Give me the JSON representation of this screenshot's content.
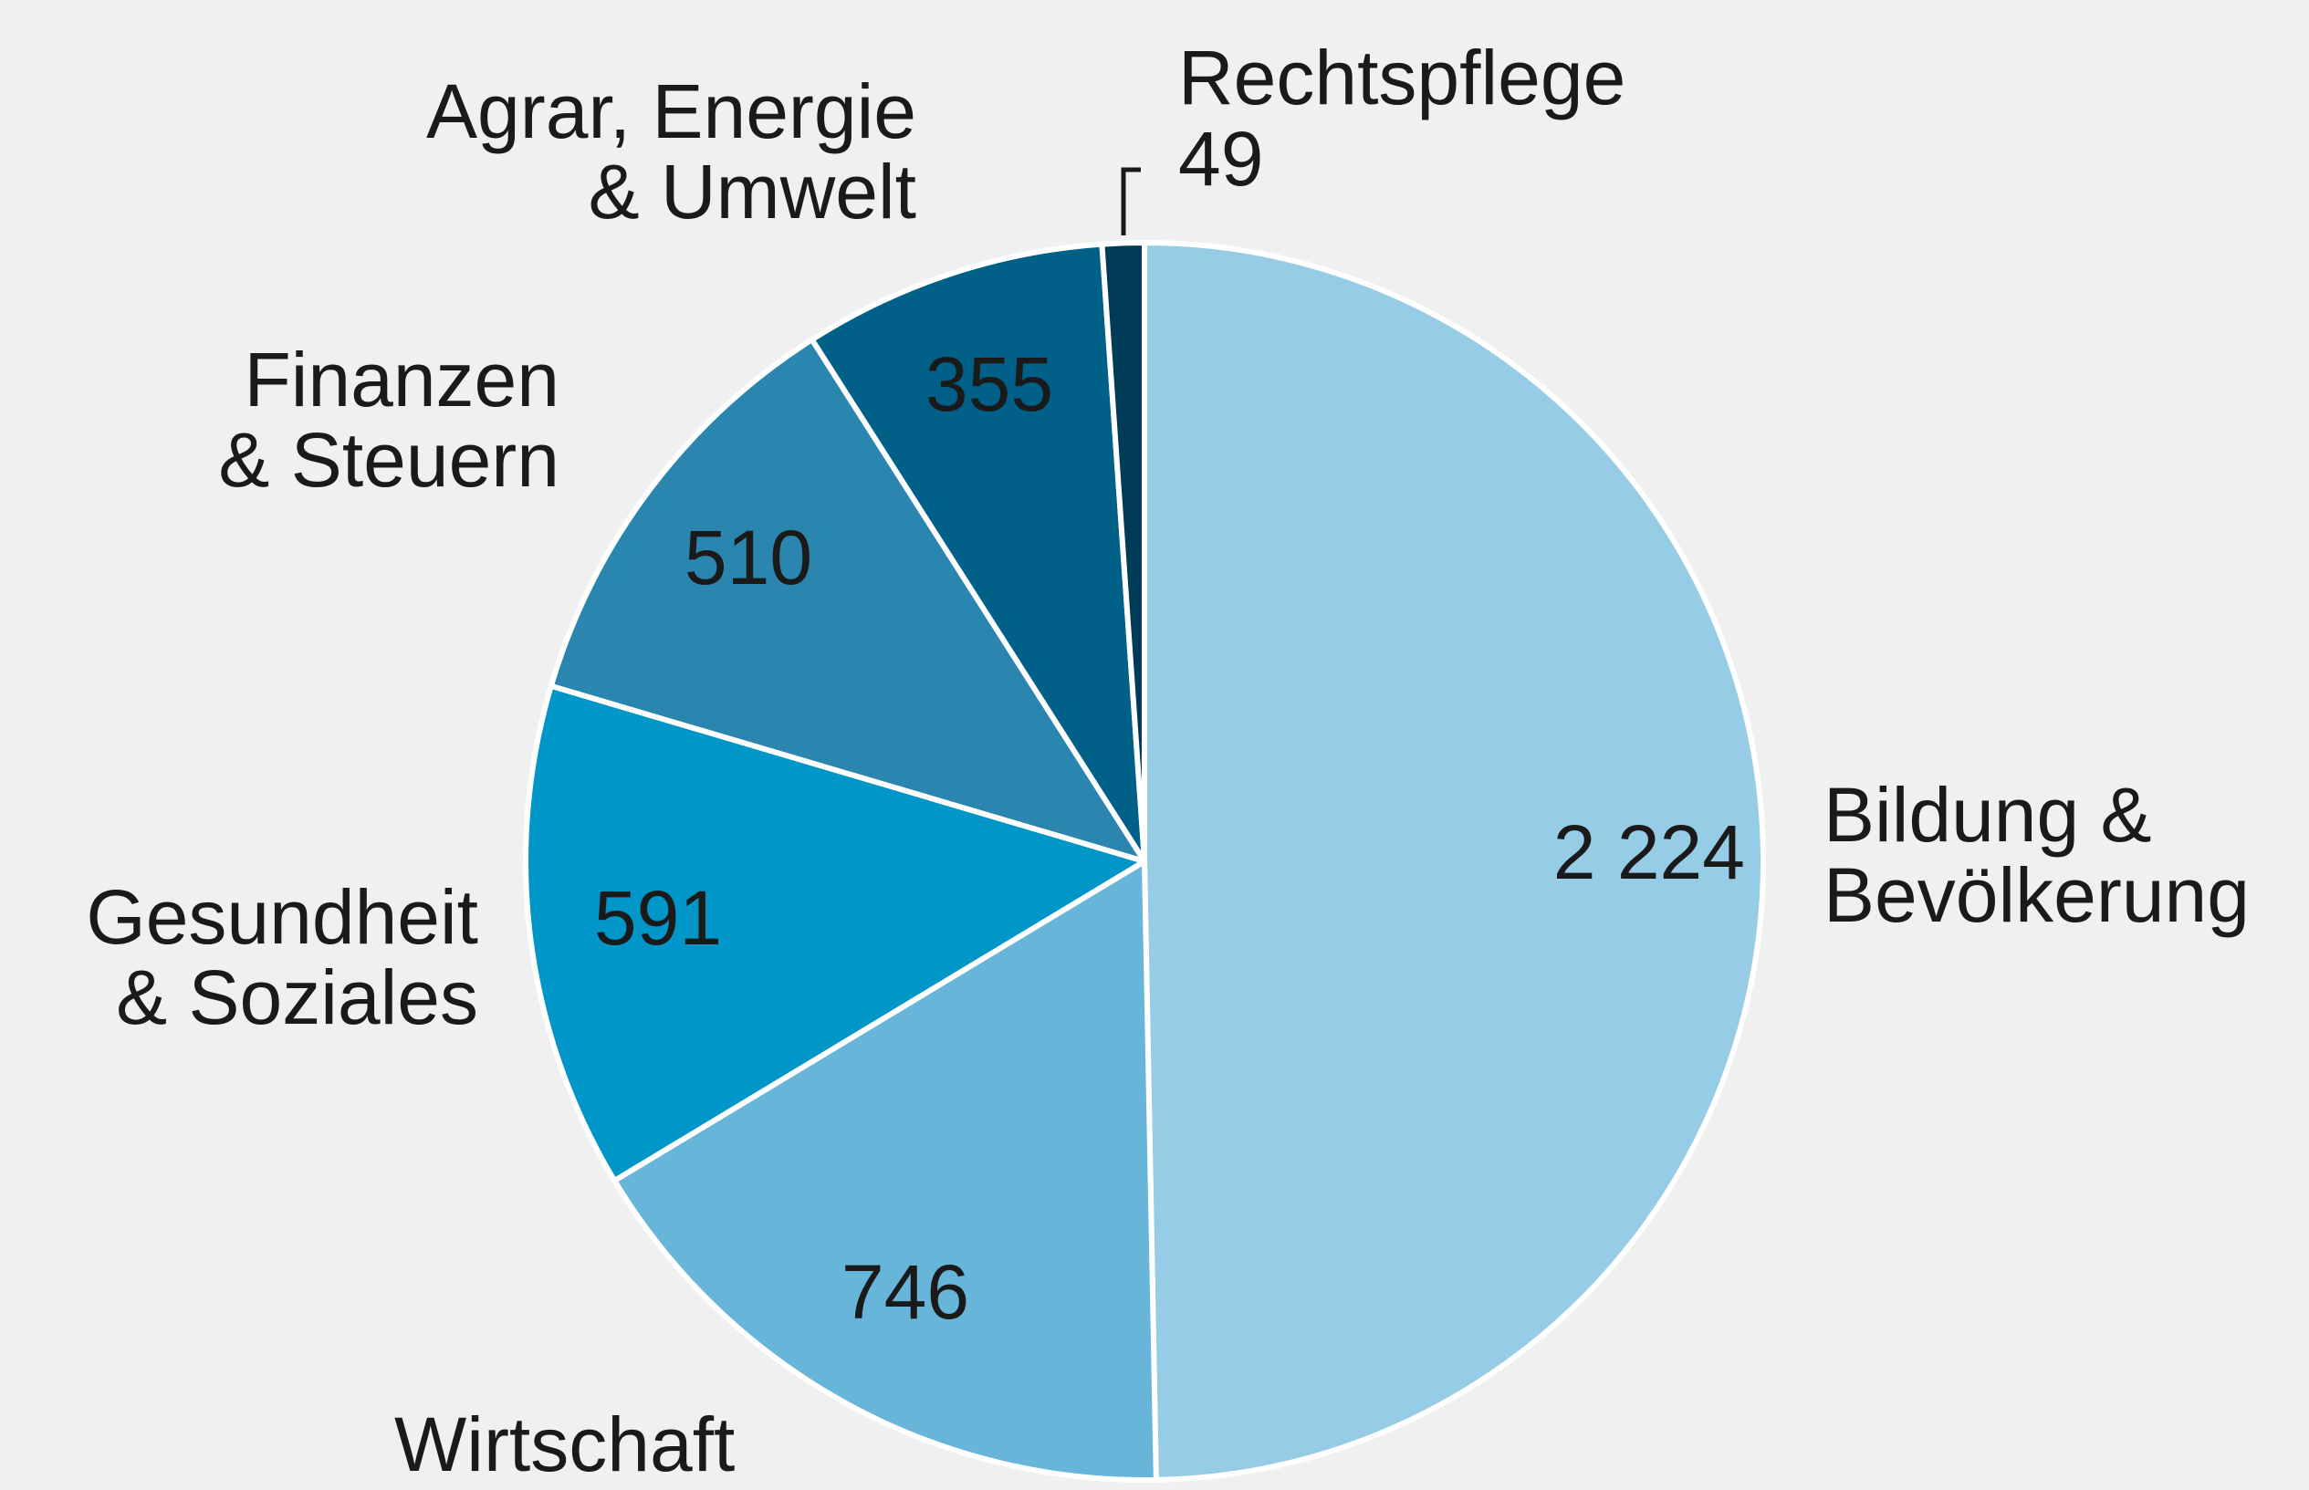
{
  "chart_data": {
    "type": "pie",
    "categories": [
      "Bildung &\nBevölkerung",
      "Wirtschaft",
      "Gesundheit\n& Soziales",
      "Finanzen\n& Steuern",
      "Agrar, Energie\n& Umwelt",
      "Rechtspflege"
    ],
    "values": [
      2224,
      746,
      591,
      510,
      355,
      49
    ],
    "value_labels": [
      "2 224",
      "746",
      "591",
      "510",
      "355",
      "49"
    ],
    "colors": [
      "#96cce6",
      "#67b5d8",
      "#0096c8",
      "#2a86ae",
      "#006088",
      "#003c58"
    ]
  }
}
